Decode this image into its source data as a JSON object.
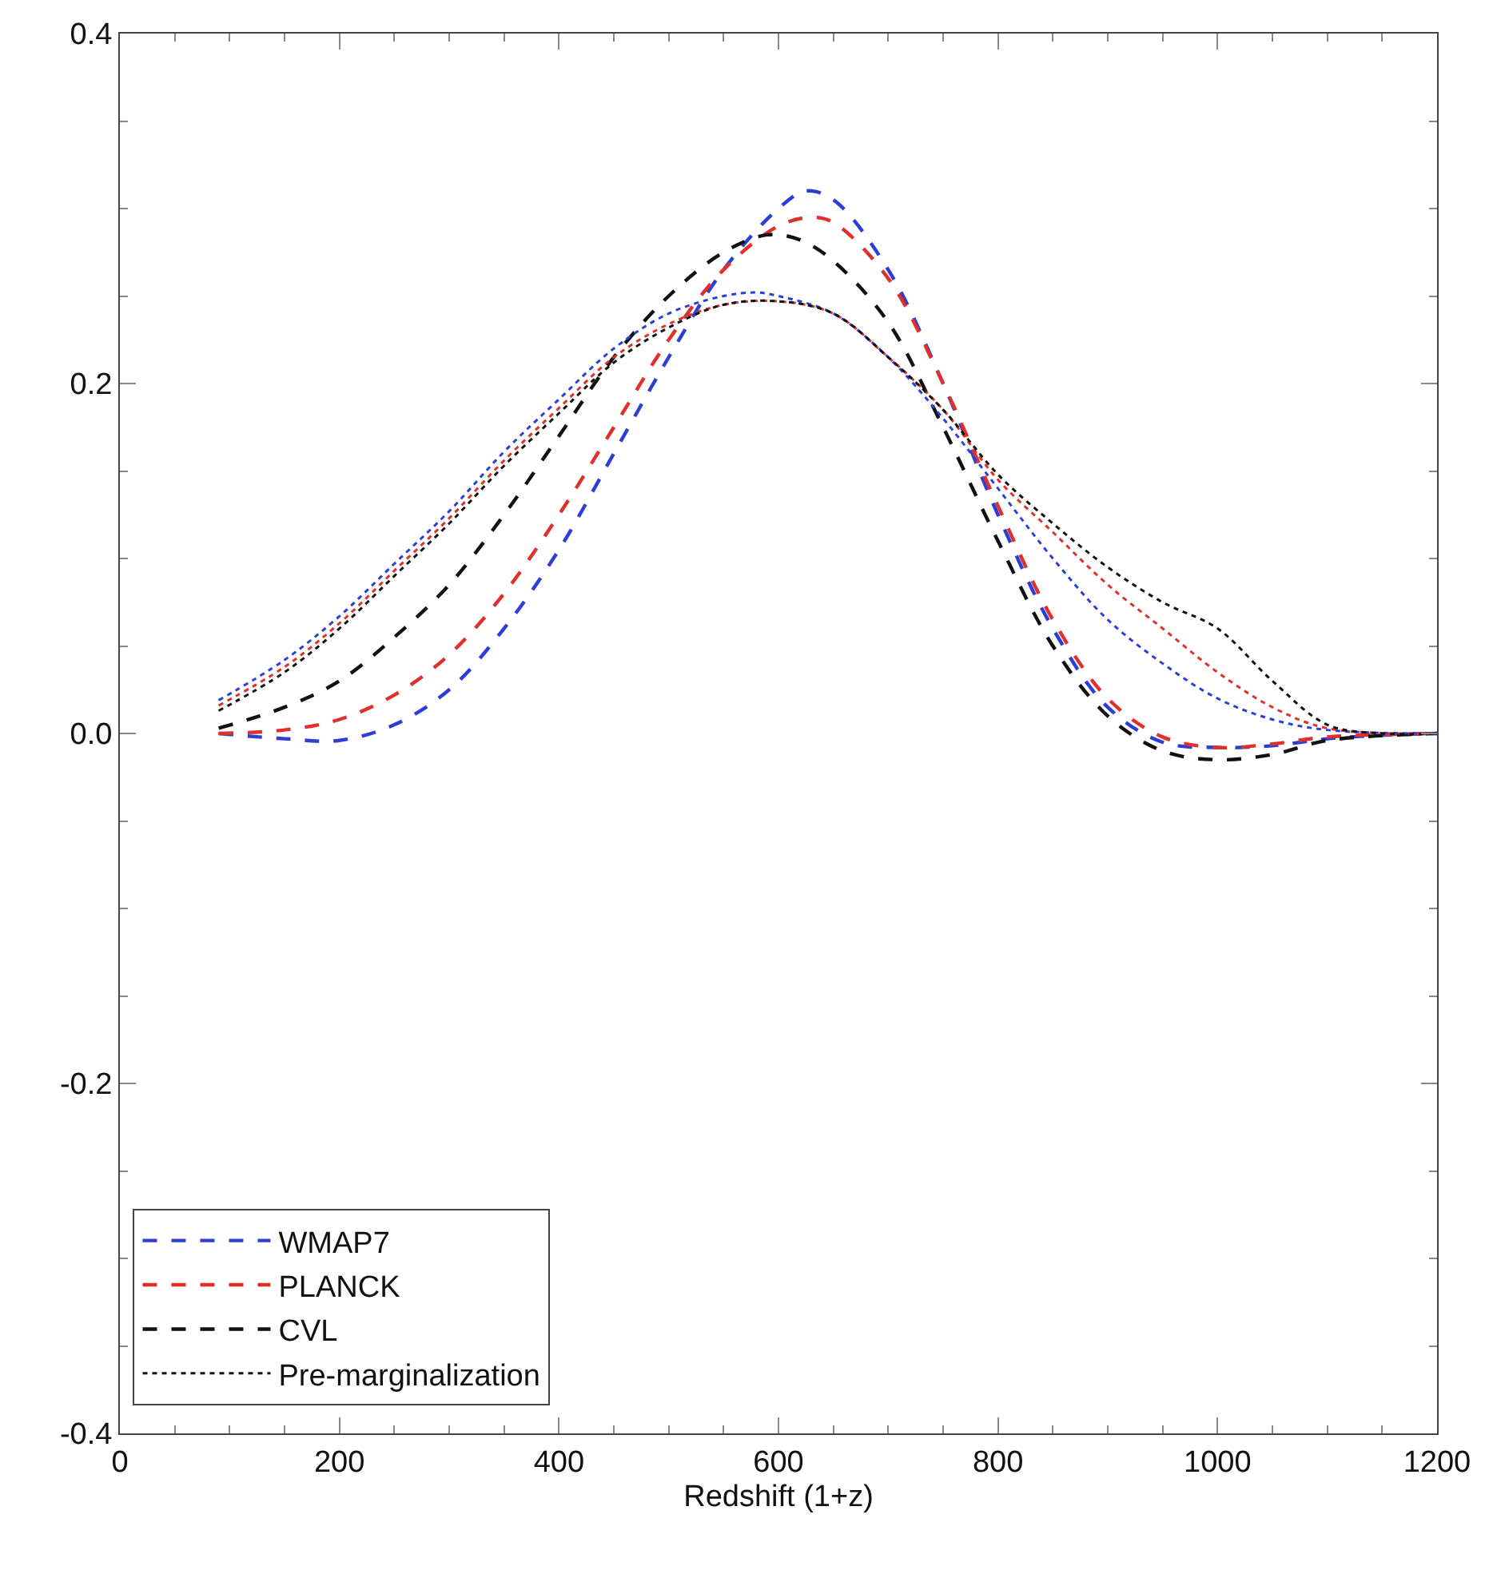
{
  "chart_data": {
    "type": "line",
    "xlabel": "Redshift (1+z)",
    "xlim": [
      0,
      1200
    ],
    "xticks": [
      0,
      200,
      400,
      600,
      800,
      1000,
      1200
    ],
    "ylim": [
      -0.4,
      0.4
    ],
    "yticks": [
      {
        "value": -0.4,
        "label": "-0.4"
      },
      {
        "value": -0.2,
        "label": "-0.2"
      },
      {
        "value": 0,
        "label": "0.0"
      },
      {
        "value": 0.2,
        "label": "0.2"
      },
      {
        "value": 0.4,
        "label": "0.4"
      }
    ],
    "legend": "bottom left",
    "marker": "none",
    "series": [
      {
        "name": "WMAP7",
        "color": "#2b3fd8",
        "line_style": "dashed",
        "x": [
          90,
          150,
          200,
          250,
          300,
          350,
          400,
          450,
          500,
          550,
          600,
          625,
          650,
          700,
          750,
          800,
          850,
          900,
          950,
          1000,
          1050,
          1100,
          1150,
          1200
        ],
        "values": [
          0.0,
          -0.003,
          -0.004,
          0.005,
          0.025,
          0.06,
          0.105,
          0.16,
          0.215,
          0.265,
          0.3,
          0.31,
          0.305,
          0.265,
          0.2,
          0.125,
          0.06,
          0.015,
          -0.005,
          -0.008,
          -0.007,
          -0.003,
          -0.001,
          0.0
        ]
      },
      {
        "name": "PLANCK",
        "color": "#e0302a",
        "line_style": "dashed",
        "x": [
          90,
          150,
          200,
          250,
          300,
          350,
          400,
          450,
          500,
          550,
          600,
          630,
          650,
          700,
          750,
          800,
          850,
          900,
          950,
          1000,
          1050,
          1100,
          1200
        ],
        "values": [
          0.0,
          0.002,
          0.008,
          0.022,
          0.045,
          0.08,
          0.125,
          0.175,
          0.225,
          0.265,
          0.29,
          0.295,
          0.292,
          0.26,
          0.2,
          0.13,
          0.065,
          0.02,
          -0.002,
          -0.008,
          -0.006,
          -0.002,
          0.0
        ]
      },
      {
        "name": "CVL",
        "color": "#111111",
        "line_style": "dashed",
        "x": [
          90,
          150,
          200,
          250,
          300,
          350,
          400,
          450,
          500,
          550,
          590,
          620,
          650,
          700,
          750,
          800,
          850,
          900,
          950,
          1000,
          1050,
          1100,
          1200
        ],
        "values": [
          0.003,
          0.015,
          0.03,
          0.055,
          0.085,
          0.125,
          0.17,
          0.215,
          0.25,
          0.275,
          0.285,
          0.282,
          0.27,
          0.235,
          0.175,
          0.11,
          0.05,
          0.01,
          -0.01,
          -0.015,
          -0.012,
          -0.004,
          0.0
        ]
      },
      {
        "color": "#2b3fd8",
        "line_style": "dotted",
        "x": [
          90,
          150,
          200,
          250,
          300,
          350,
          400,
          450,
          500,
          550,
          580,
          600,
          650,
          700,
          750,
          800,
          850,
          900,
          950,
          1000,
          1050,
          1100,
          1200
        ],
        "values": [
          0.019,
          0.042,
          0.067,
          0.097,
          0.127,
          0.161,
          0.191,
          0.22,
          0.24,
          0.25,
          0.252,
          0.25,
          0.24,
          0.215,
          0.18,
          0.14,
          0.1,
          0.065,
          0.04,
          0.02,
          0.008,
          0.002,
          0.0
        ]
      },
      {
        "color": "#e0302a",
        "line_style": "dotted",
        "x": [
          90,
          150,
          200,
          250,
          300,
          350,
          400,
          450,
          500,
          550,
          600,
          650,
          700,
          750,
          800,
          850,
          900,
          950,
          1000,
          1050,
          1100,
          1200
        ],
        "values": [
          0.016,
          0.038,
          0.063,
          0.093,
          0.123,
          0.156,
          0.186,
          0.215,
          0.234,
          0.245,
          0.247,
          0.24,
          0.215,
          0.185,
          0.145,
          0.115,
          0.085,
          0.06,
          0.035,
          0.015,
          0.003,
          0.0
        ]
      },
      {
        "name": "Pre-marginalization",
        "color": "#111111",
        "line_style": "dotted",
        "x": [
          90,
          150,
          200,
          250,
          300,
          350,
          400,
          450,
          500,
          550,
          600,
          650,
          700,
          750,
          800,
          850,
          900,
          950,
          1000,
          1050,
          1100,
          1150,
          1200
        ],
        "values": [
          0.013,
          0.035,
          0.06,
          0.09,
          0.12,
          0.153,
          0.183,
          0.212,
          0.232,
          0.245,
          0.247,
          0.24,
          0.215,
          0.185,
          0.148,
          0.12,
          0.095,
          0.075,
          0.06,
          0.03,
          0.005,
          0.0,
          0.0
        ]
      }
    ]
  }
}
